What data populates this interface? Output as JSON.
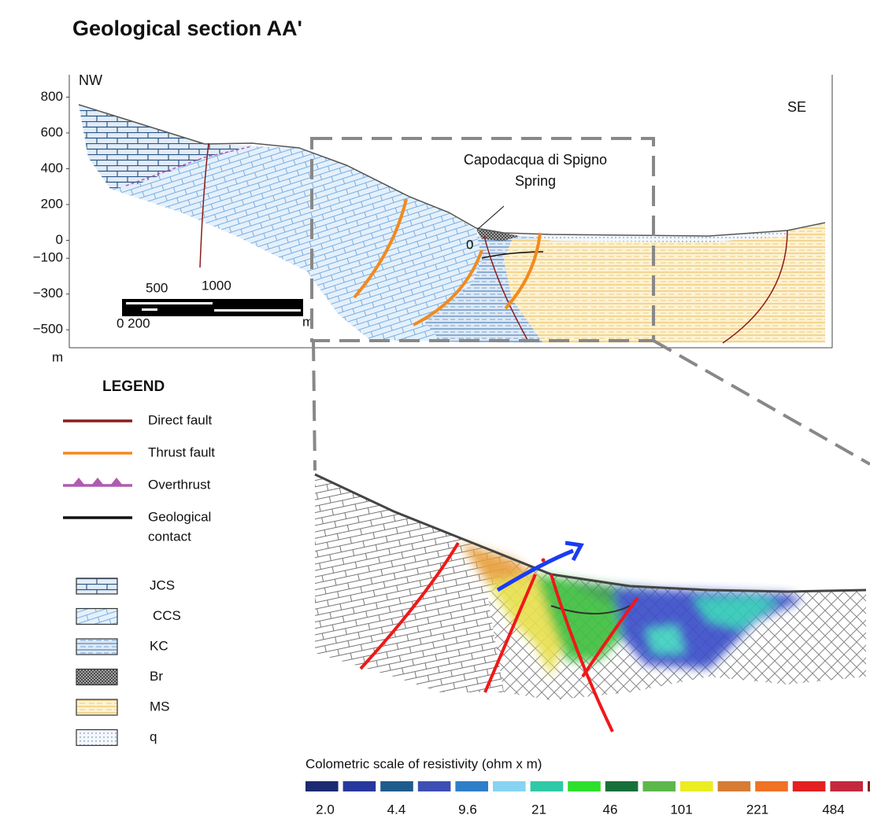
{
  "title": "Geological section AA'",
  "section": {
    "ylim": [
      -600,
      900
    ],
    "yticks": [
      800,
      600,
      400,
      200,
      0,
      {
        "value": -100,
        "label": "−100"
      },
      {
        "value": -300,
        "label": "−300"
      },
      {
        "value": -500,
        "label": "−500"
      }
    ],
    "y_unit": "m",
    "left_label": "NW",
    "right_label": "SE",
    "spring_label": [
      "Capodacqua di Spigno",
      "Spring"
    ],
    "spring_marker": "0",
    "scale_bar": {
      "top_labels": [
        "500",
        "1000"
      ],
      "bottom_label": "0 200",
      "unit": "m"
    }
  },
  "legend": {
    "title": "LEGEND",
    "lines": [
      {
        "label": [
          "Direct fault"
        ],
        "color": "#8b1c1c"
      },
      {
        "label": [
          "Thrust fault"
        ],
        "color": "#f28a1e"
      },
      {
        "label": [
          "Overthrust"
        ],
        "color": "#b05bb0"
      },
      {
        "label": [
          "Geological",
          "contact"
        ],
        "color": "#111111"
      }
    ],
    "units": [
      "JCS",
      "CCS",
      "KC",
      "Br",
      "MS",
      "q"
    ]
  },
  "resistivity_scale": {
    "title": "Colometric scale of resistivity (ohm x m)",
    "colors": [
      "#1c2a72",
      "#26389e",
      "#1f5c8c",
      "#3d4fb4",
      "#2f7ec8",
      "#86d4f2",
      "#2ec9a6",
      "#2ee02e",
      "#17703a",
      "#5cb84a",
      "#ecec22",
      "#d87c34",
      "#f07224",
      "#e42020",
      "#c4283c",
      "#8c1c1c",
      "#704a3c"
    ],
    "labels": [
      "2.0",
      "4.4",
      "9.6",
      "21",
      "46",
      "101",
      "221",
      "484"
    ]
  }
}
